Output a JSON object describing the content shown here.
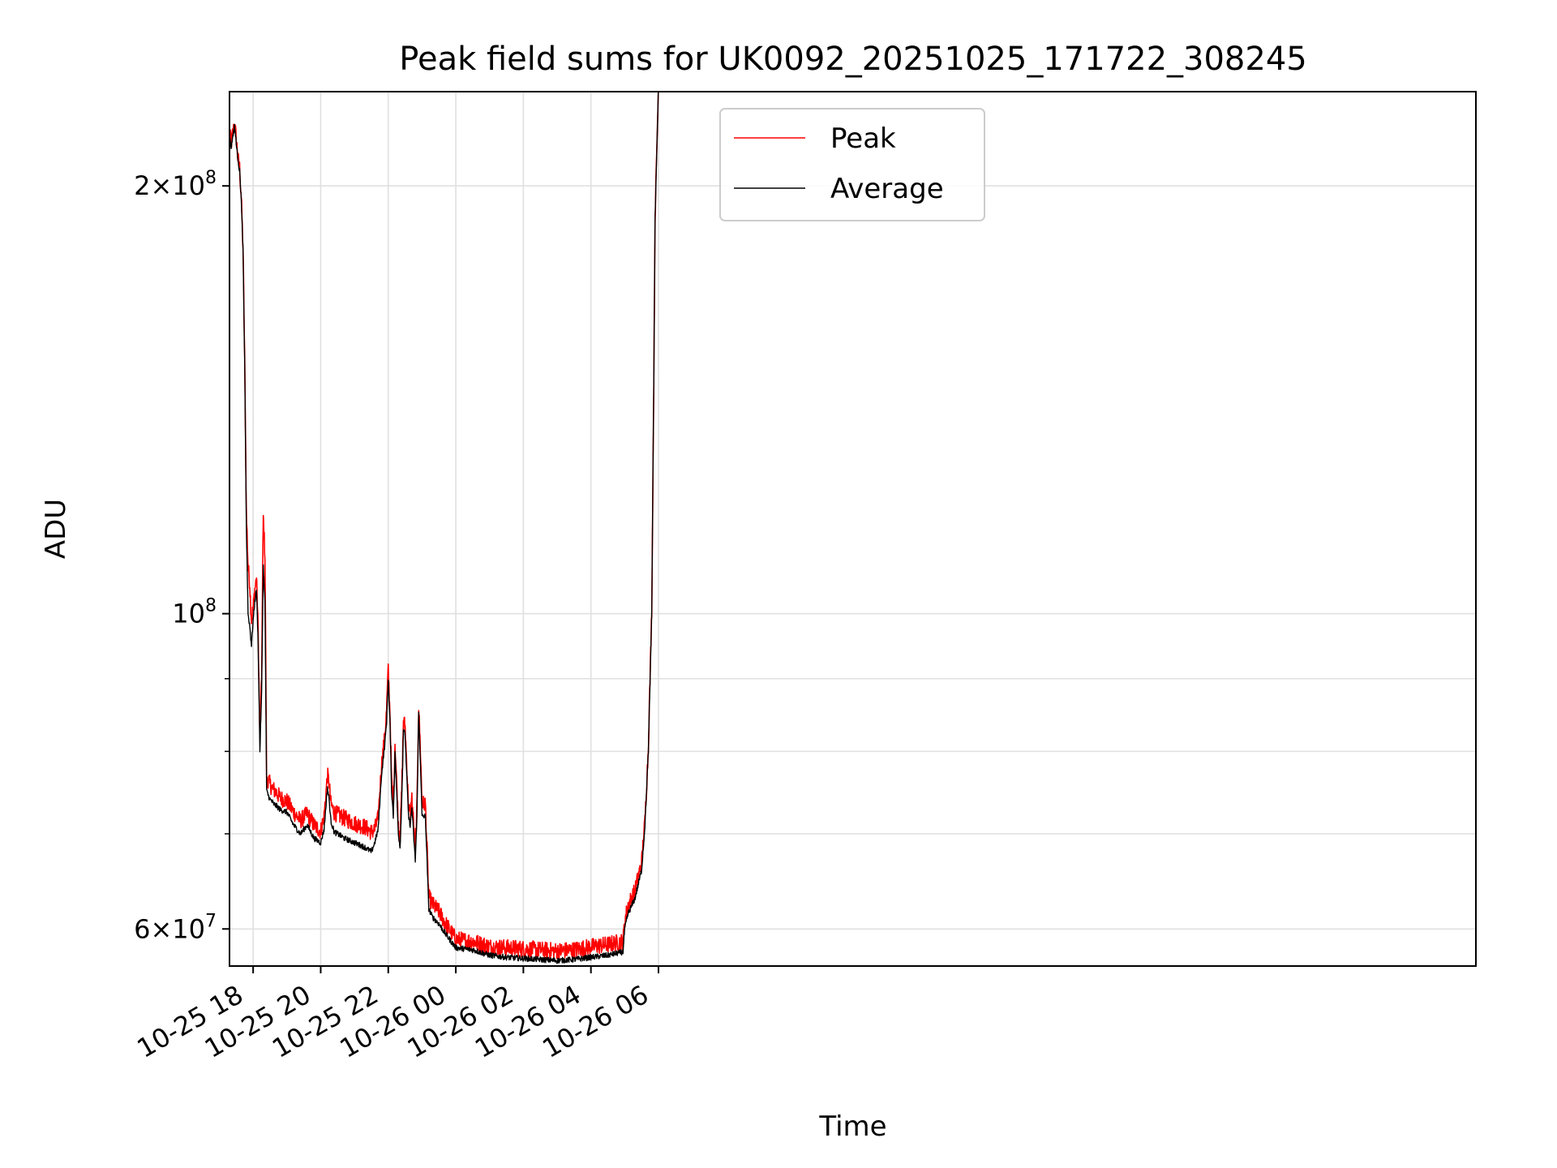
{
  "chart_data": {
    "type": "line",
    "title": "Peak field sums for UK0092_20251025_171722_308245",
    "xlabel": "Time",
    "ylabel": "ADU",
    "yscale": "log",
    "ylim": [
      56500000,
      233000000
    ],
    "xlim_hours": [
      -0.7,
      36.2
    ],
    "grid": true,
    "legend_position": "upper center",
    "x_ticks": [
      {
        "hour": 0,
        "label": "10-25 18"
      },
      {
        "hour": 2,
        "label": "10-25 20"
      },
      {
        "hour": 4,
        "label": "10-25 22"
      },
      {
        "hour": 6,
        "label": "10-26 00"
      },
      {
        "hour": 8,
        "label": "10-26 02"
      },
      {
        "hour": 10,
        "label": "10-26 04"
      },
      {
        "hour": 12,
        "label": "10-26 06"
      }
    ],
    "y_major_ticks": [
      {
        "value": 60000000,
        "base": "6",
        "exp": "7"
      },
      {
        "value": 100000000,
        "base": "",
        "exp": "8"
      },
      {
        "value": 200000000,
        "base": "2",
        "exp": "8"
      }
    ],
    "y_minor_ticks": [
      70000000,
      80000000,
      90000000
    ],
    "colors": {
      "peak": "#ff0000",
      "average": "#000000",
      "grid": "#e0e0e0"
    },
    "series": [
      {
        "name": "Average",
        "x_hours": [
          -0.7,
          -0.65,
          -0.6,
          -0.55,
          -0.5,
          -0.45,
          -0.4,
          -0.35,
          -0.3,
          -0.25,
          -0.2,
          -0.15,
          -0.1,
          -0.05,
          0.0,
          0.05,
          0.1,
          0.15,
          0.2,
          0.25,
          0.3,
          0.35,
          0.4,
          0.45,
          0.5,
          0.55,
          0.6,
          0.7,
          0.8,
          1.0,
          1.2,
          1.4,
          1.6,
          1.8,
          2.0,
          2.1,
          2.2,
          2.25,
          2.3,
          2.4,
          2.5,
          2.7,
          3.0,
          3.3,
          3.5,
          3.6,
          3.7,
          3.8,
          3.85,
          3.9,
          3.95,
          4.0,
          4.05,
          4.1,
          4.15,
          4.2,
          4.3,
          4.35,
          4.4,
          4.45,
          4.5,
          4.6,
          4.65,
          4.7,
          4.8,
          4.85,
          4.9,
          4.95,
          5.0,
          5.1,
          5.2,
          5.3,
          5.5,
          5.7,
          6.0,
          6.5,
          7.0,
          7.5,
          8.0,
          8.5,
          9.0,
          9.5,
          10.0,
          10.5,
          10.95,
          11.0,
          11.1,
          11.3,
          11.5,
          11.6,
          11.7,
          11.8,
          11.85,
          11.9,
          12.0
        ],
        "values": [
          218000000,
          213000000,
          217000000,
          220000000,
          215000000,
          208000000,
          205000000,
          195000000,
          180000000,
          150000000,
          115000000,
          100000000,
          98000000,
          95000000,
          99000000,
          102000000,
          104000000,
          95000000,
          80000000,
          88000000,
          108000000,
          102000000,
          75000000,
          74500000,
          74000000,
          73800000,
          73500000,
          73200000,
          72800000,
          72500000,
          71000000,
          70000000,
          71000000,
          69500000,
          69000000,
          70500000,
          75500000,
          74000000,
          71500000,
          70200000,
          70000000,
          69500000,
          69000000,
          68500000,
          68000000,
          69000000,
          70500000,
          77000000,
          79000000,
          81000000,
          84000000,
          90000000,
          84000000,
          75000000,
          72000000,
          80000000,
          70000000,
          68500000,
          74000000,
          83000000,
          82000000,
          72000000,
          71000000,
          73000000,
          67000000,
          72000000,
          85000000,
          79000000,
          72000000,
          72000000,
          62000000,
          61200000,
          60500000,
          59500000,
          58200000,
          58000000,
          57500000,
          57300000,
          57200000,
          57100000,
          57000000,
          57100000,
          57300000,
          57500000,
          57800000,
          60000000,
          61500000,
          63000000,
          66000000,
          71000000,
          80000000,
          100000000,
          135000000,
          190000000,
          235000000
        ]
      },
      {
        "name": "Peak",
        "x_hours": [
          -0.7,
          -0.65,
          -0.6,
          -0.55,
          -0.5,
          -0.45,
          -0.4,
          -0.35,
          -0.3,
          -0.25,
          -0.2,
          -0.15,
          -0.1,
          -0.05,
          0.0,
          0.05,
          0.1,
          0.15,
          0.2,
          0.25,
          0.3,
          0.35,
          0.4,
          0.45,
          0.5,
          0.55,
          0.6,
          0.7,
          0.8,
          1.0,
          1.2,
          1.4,
          1.6,
          1.8,
          2.0,
          2.1,
          2.2,
          2.25,
          2.3,
          2.4,
          2.5,
          2.7,
          3.0,
          3.3,
          3.5,
          3.6,
          3.7,
          3.8,
          3.85,
          3.9,
          3.95,
          4.0,
          4.05,
          4.1,
          4.15,
          4.2,
          4.3,
          4.35,
          4.4,
          4.45,
          4.5,
          4.6,
          4.65,
          4.7,
          4.8,
          4.85,
          4.9,
          4.95,
          5.0,
          5.1,
          5.2,
          5.3,
          5.5,
          5.7,
          6.0,
          6.5,
          7.0,
          7.5,
          8.0,
          8.5,
          9.0,
          9.5,
          10.0,
          10.5,
          10.95,
          11.0,
          11.1,
          11.3,
          11.5,
          11.6,
          11.7,
          11.8,
          11.85,
          11.9,
          12.0
        ],
        "values": [
          219000000,
          214000000,
          218000000,
          221000000,
          216000000,
          209000000,
          206000000,
          196000000,
          181000000,
          151000000,
          118000000,
          108000000,
          105000000,
          99000000,
          101000000,
          104000000,
          106000000,
          97000000,
          81000000,
          90000000,
          117000000,
          110000000,
          76000000,
          76500000,
          75800000,
          75500000,
          75200000,
          74800000,
          74200000,
          73800000,
          72500000,
          71500000,
          72300000,
          71000000,
          70300000,
          72000000,
          77000000,
          76000000,
          73500000,
          72500000,
          72200000,
          71800000,
          71200000,
          70800000,
          70200000,
          70500000,
          71800000,
          78200000,
          80200000,
          82000000,
          85500000,
          91500000,
          85200000,
          76200000,
          73200000,
          81200000,
          71200000,
          69700000,
          75200000,
          84200000,
          83200000,
          73200000,
          72200000,
          74200000,
          68200000,
          73200000,
          86200000,
          80500000,
          73500000,
          73500000,
          63200000,
          62500000,
          61700000,
          60500000,
          59000000,
          58800000,
          58300000,
          58200000,
          58100000,
          58000000,
          57900000,
          58000000,
          58300000,
          58500000,
          58800000,
          60800000,
          62300000,
          63800000,
          66800000,
          71500000,
          80500000,
          100500000,
          135500000,
          190500000,
          235500000
        ]
      }
    ]
  }
}
